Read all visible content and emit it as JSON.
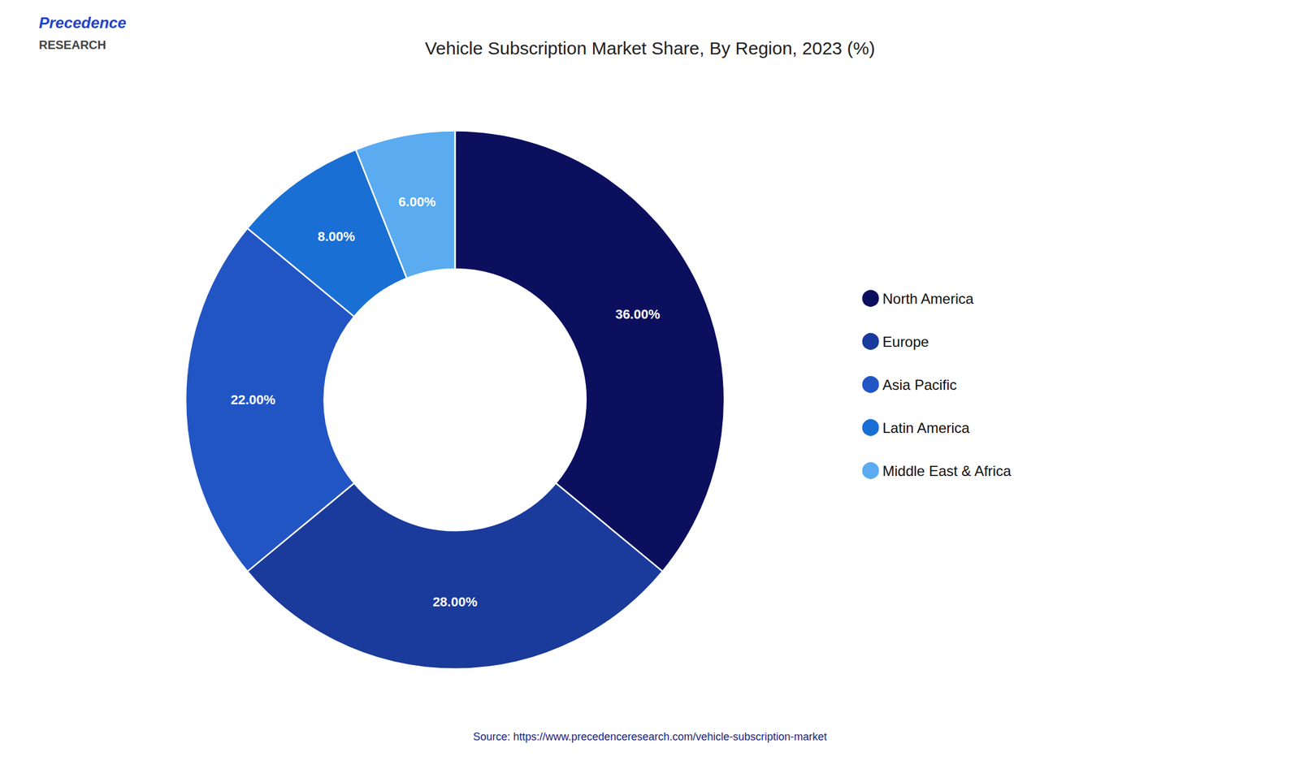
{
  "chart_data": {
    "type": "pie",
    "title": "Vehicle Subscription Market Share, By Region, 2023 (%)",
    "categories": [
      "North America",
      "Europe",
      "Asia Pacific",
      "Latin America",
      "Middle East & Africa"
    ],
    "values": [
      36.0,
      28.0,
      22.0,
      8.0,
      6.0
    ],
    "value_labels": [
      "36.00%",
      "28.00%",
      "22.00%",
      "8.00%",
      "6.00%"
    ],
    "colors": [
      "#0b0f5e",
      "#1a3a9c",
      "#2255c4",
      "#1a6fd4",
      "#5aabf0"
    ],
    "data_labels": true,
    "legend": "right",
    "annotations": [
      "Precedence",
      "RESEARCH",
      "Source: https://www.precedenceresearch.com/vehicle-subscription-market"
    ]
  }
}
